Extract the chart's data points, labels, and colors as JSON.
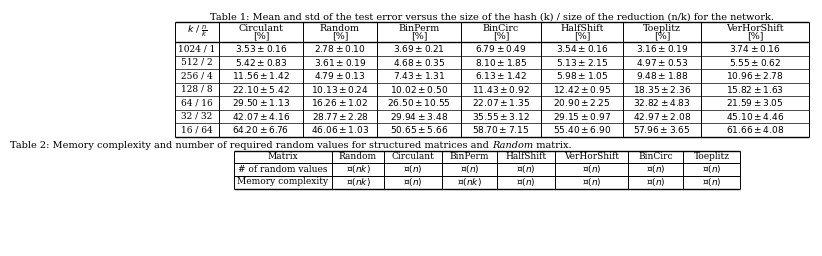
{
  "title1": "Table 1: Mean and std of the test error versus the size of the hash (k) / size of the reduction (n/k) for the network.",
  "title2_pre": "Table 2: Memory complexity and number of required random values for structured matrices and ",
  "title2_italic": "Random",
  "title2_post": " matrix.",
  "table1_col_headers": [
    "$k$ / $\\frac{n}{k}$",
    "Circulant\n[%]",
    "Random\n[%]",
    "BinPerm\n[%]",
    "BinCirc\n[%]",
    "HalfShift\n[%]",
    "Toeplitz\n[%]",
    "VerHorShift\n[%]"
  ],
  "table1_rows": [
    [
      "1024 / 1",
      "$3.53 \\pm 0.16$",
      "$2.78 \\pm 0.10$",
      "$3.69 \\pm 0.21$",
      "$6.79 \\pm 0.49$",
      "$3.54 \\pm 0.16$",
      "$3.16 \\pm 0.19$",
      "$3.74 \\pm 0.16$"
    ],
    [
      "512 / 2",
      "$5.42 \\pm 0.83$",
      "$3.61 \\pm 0.19$",
      "$4.68 \\pm 0.35$",
      "$8.10 \\pm 1.85$",
      "$5.13 \\pm 2.15$",
      "$4.97 \\pm 0.53$",
      "$5.55 \\pm 0.62$"
    ],
    [
      "256 / 4",
      "$11.56 \\pm 1.42$",
      "$4.79 \\pm 0.13$",
      "$7.43 \\pm 1.31$",
      "$6.13 \\pm 1.42$",
      "$5.98 \\pm 1.05$",
      "$9.48 \\pm 1.88$",
      "$10.96 \\pm 2.78$"
    ],
    [
      "128 / 8",
      "$22.10 \\pm 5.42$",
      "$10.13 \\pm 0.24$",
      "$10.02 \\pm 0.50$",
      "$11.43 \\pm 0.92$",
      "$12.42 \\pm 0.95$",
      "$18.35 \\pm 2.36$",
      "$15.82 \\pm 1.63$"
    ],
    [
      "64 / 16",
      "$29.50 \\pm 1.13$",
      "$16.26 \\pm 1.02$",
      "$26.50 \\pm 10.55$",
      "$22.07 \\pm 1.35$",
      "$20.90 \\pm 2.25$",
      "$32.82 \\pm 4.83$",
      "$21.59 \\pm 3.05$"
    ],
    [
      "32 / 32",
      "$42.07 \\pm 4.16$",
      "$28.77 \\pm 2.28$",
      "$29.94 \\pm 3.48$",
      "$35.55 \\pm 3.12$",
      "$29.15 \\pm 0.97$",
      "$42.97 \\pm 2.08$",
      "$45.10 \\pm 4.46$"
    ],
    [
      "16 / 64",
      "$64.20 \\pm 6.76$",
      "$46.06 \\pm 1.03$",
      "$50.65 \\pm 5.66$",
      "$58.70 \\pm 7.15$",
      "$55.40 \\pm 6.90$",
      "$57.96 \\pm 3.65$",
      "$61.66 \\pm 4.08$"
    ]
  ],
  "table2_col_headers": [
    "Matrix",
    "Random",
    "Circulant",
    "BinPerm",
    "HalfShift",
    "VerHorShift",
    "BinCirc",
    "Toeplitz"
  ],
  "table2_rows": [
    [
      "# of random values",
      "$\\mathcal{O}(nk)$",
      "$\\mathcal{O}(n)$",
      "$\\mathcal{O}(n)$",
      "$\\mathcal{O}(n)$",
      "$\\mathcal{O}(n)$",
      "$\\mathcal{O}(n)$",
      "$\\mathcal{O}(n)$"
    ],
    [
      "Memory complexity",
      "$\\mathcal{O}(nk)$",
      "$\\mathcal{O}(n)$",
      "$\\mathcal{O}(nk)$",
      "$\\mathcal{O}(n)$",
      "$\\mathcal{O}(n)$",
      "$\\mathcal{O}(n)$",
      "$\\mathcal{O}(n)$"
    ]
  ],
  "bg_color": "#ffffff",
  "fs_title": 7.0,
  "fs_hdr": 6.8,
  "fs_cell": 6.5
}
